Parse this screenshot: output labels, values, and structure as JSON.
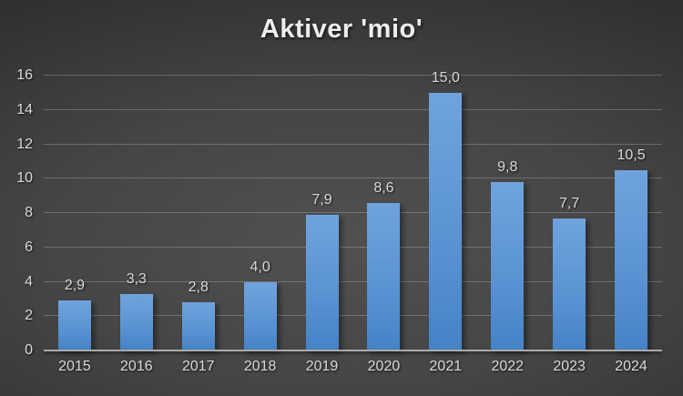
{
  "title": "Aktiver 'mio'",
  "chart_data": {
    "type": "bar",
    "title": "Aktiver 'mio'",
    "categories": [
      "2015",
      "2016",
      "2017",
      "2018",
      "2019",
      "2020",
      "2021",
      "2022",
      "2023",
      "2024"
    ],
    "values": [
      2.9,
      3.3,
      2.8,
      4.0,
      7.9,
      8.6,
      15.0,
      9.8,
      7.7,
      10.5
    ],
    "value_labels": [
      "2,9",
      "3,3",
      "2,8",
      "4,0",
      "7,9",
      "8,6",
      "15,0",
      "9,8",
      "7,7",
      "10,5"
    ],
    "xlabel": "",
    "ylabel": "",
    "ylim": [
      0,
      16
    ],
    "ytick_step": 2,
    "ytick_labels": [
      "0",
      "2",
      "4",
      "6",
      "8",
      "10",
      "12",
      "14",
      "16"
    ],
    "grid": "horizontal",
    "legend": "none",
    "colors": {
      "bar_gradient_top": "#6FA3DD",
      "bar_gradient_bottom": "#4583C7",
      "background_center": "#515151",
      "background_edge": "#252525",
      "gridline": "rgba(255,255,255,0.22)",
      "axis_line": "#ABABAB",
      "label_text": "#D9D9D9",
      "title_text": "#EDEDED"
    }
  }
}
